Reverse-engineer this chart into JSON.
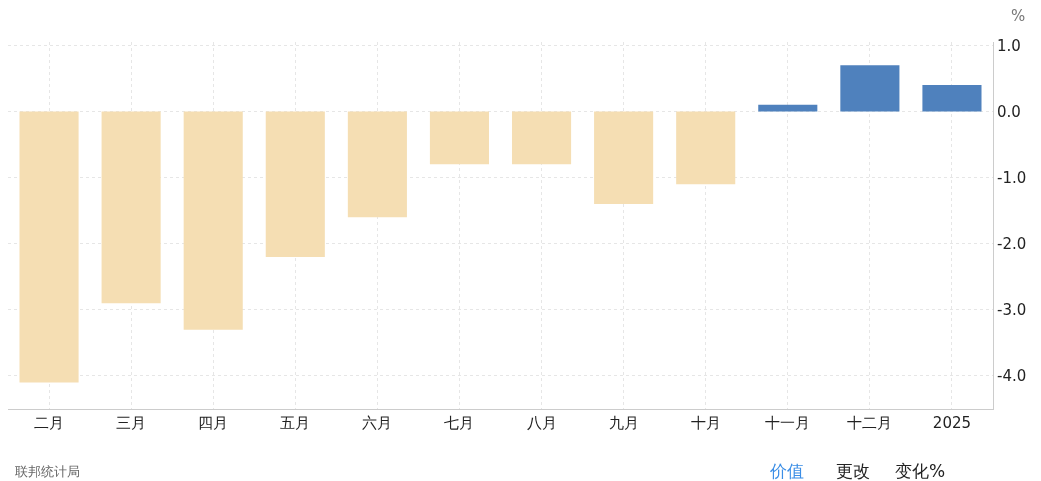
{
  "chart_data": {
    "type": "bar",
    "ylabel": "%",
    "categories": [
      "二月",
      "三月",
      "四月",
      "五月",
      "六月",
      "七月",
      "八月",
      "九月",
      "十月",
      "十一月",
      "十二月",
      "2025"
    ],
    "values": [
      -4.1,
      -2.9,
      -3.3,
      -2.2,
      -1.6,
      -0.8,
      -0.8,
      -1.4,
      -1.1,
      0.1,
      0.7,
      0.4
    ],
    "colors": [
      "#f5deb3",
      "#f5deb3",
      "#f5deb3",
      "#f5deb3",
      "#f5deb3",
      "#f5deb3",
      "#f5deb3",
      "#f5deb3",
      "#f5deb3",
      "#4f81bd",
      "#4f81bd",
      "#4f81bd"
    ],
    "ylim": [
      -4.5,
      1.05
    ],
    "yticks": [
      {
        "value": 1,
        "label": "1.0"
      },
      {
        "value": 0,
        "label": "0.0"
      },
      {
        "value": -1,
        "label": "-1.0"
      },
      {
        "value": -2,
        "label": "-2.0"
      },
      {
        "value": -3,
        "label": "-3.0"
      },
      {
        "value": -4,
        "label": "-4.0"
      }
    ],
    "grid": true,
    "annotations": [
      "联邦统计局",
      "价值",
      "更改",
      "变化%"
    ]
  }
}
